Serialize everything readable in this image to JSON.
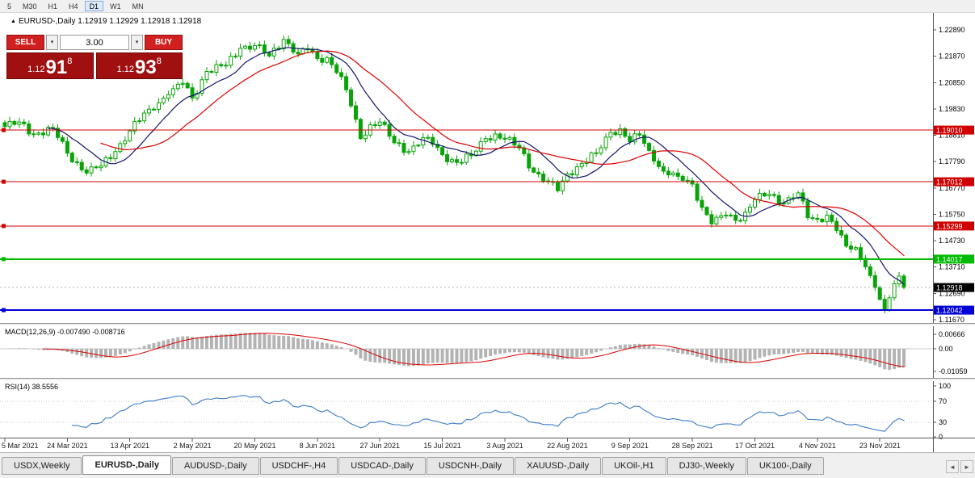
{
  "toolbar": {
    "timeframes": [
      {
        "label": "5",
        "active": false
      },
      {
        "label": "M30",
        "active": false
      },
      {
        "label": "H1",
        "active": false
      },
      {
        "label": "H4",
        "active": false
      },
      {
        "label": "D1",
        "active": true
      },
      {
        "label": "W1",
        "active": false
      },
      {
        "label": "MN",
        "active": false
      }
    ]
  },
  "icons": {
    "symbol_marker": "▲",
    "dropdown": "▾",
    "scroll_left": "◄",
    "scroll_right": "►"
  },
  "quote": {
    "text": "EURUSD-,Daily 1.12919 1.12929 1.12918 1.12918"
  },
  "trade_panel": {
    "sell_label": "SELL",
    "buy_label": "BUY",
    "volume": "3.00",
    "bid": {
      "prefix": "1.12",
      "big": "91",
      "sup": "8"
    },
    "ask": {
      "prefix": "1.12",
      "big": "93",
      "sup": "8"
    }
  },
  "indicators": {
    "macd_label": "MACD(12,26,9) -0.007490 -0.008716",
    "rsi_label": "RSI(14) 38.5556"
  },
  "price_axis": {
    "ticks": [
      "1.22890",
      "1.21870",
      "1.20850",
      "1.19830",
      "1.18810",
      "1.17790",
      "1.16770",
      "1.15750",
      "1.14730",
      "1.13710",
      "1.12690",
      "1.11670"
    ]
  },
  "macd_axis": {
    "ticks": [
      {
        "value": 0.00666,
        "label": "0.00666"
      },
      {
        "value": 0,
        "label": "0.00"
      },
      {
        "value": -0.01059,
        "label": "-0.01059"
      }
    ]
  },
  "rsi_axis": {
    "ticks": [
      {
        "value": 100,
        "label": "100"
      },
      {
        "value": 70,
        "label": "70"
      },
      {
        "value": 30,
        "label": "30"
      },
      {
        "value": 0,
        "label": "0"
      }
    ],
    "levels": [
      70,
      30
    ]
  },
  "levels": [
    {
      "price": 1.1901,
      "label": "1.19010",
      "color": "#d10000",
      "width": 1,
      "kind": "hline"
    },
    {
      "price": 1.17012,
      "label": "1.17012",
      "color": "#d10000",
      "width": 1,
      "kind": "hline"
    },
    {
      "price": 1.15299,
      "label": "1.15299",
      "color": "#d10000",
      "width": 1,
      "kind": "hline"
    },
    {
      "price": 1.14017,
      "label": "1.14017",
      "color": "#00bb00",
      "width": 2,
      "kind": "hline"
    },
    {
      "price": 1.12918,
      "label": "1.12918",
      "color": "#000000",
      "width": 1,
      "kind": "bid"
    },
    {
      "price": 1.12042,
      "label": "1.12042",
      "color": "#0000d6",
      "width": 2,
      "kind": "hline"
    }
  ],
  "date_axis": {
    "bar_step": 13,
    "labels": [
      "5 Mar 2021",
      "24 Mar 2021",
      "13 Apr 2021",
      "2 May 2021",
      "20 May 2021",
      "8 Jun 2021",
      "27 Jun 2021",
      "15 Jul 2021",
      "3 Aug 2021",
      "22 Aug 2021",
      "9 Sep 2021",
      "28 Sep 2021",
      "17 Oct 2021",
      "4 Nov 2021",
      "23 Nov 2021"
    ]
  },
  "chart_data": {
    "type": "candlestick",
    "symbol": "EURUSD-",
    "timeframe": "Daily",
    "current": {
      "open": 1.12919,
      "high": 1.12929,
      "low": 1.12918,
      "close": 1.12918
    },
    "bar_count": 188,
    "visible_price_range": [
      1.1154,
      1.233
    ],
    "moving_averages": [
      {
        "period": 10,
        "color": "#14146e"
      },
      {
        "period": 21,
        "color": "#dd0000"
      }
    ],
    "macd": {
      "fast": 12,
      "slow": 26,
      "signal": 9,
      "value": -0.00749,
      "signal_value": -0.008716
    },
    "rsi": {
      "period": 14,
      "value": 38.5556
    },
    "close_anchors": [
      [
        0,
        1.1915
      ],
      [
        3,
        1.1932
      ],
      [
        6,
        1.1885
      ],
      [
        10,
        1.1908
      ],
      [
        13,
        1.1812
      ],
      [
        17,
        1.1735
      ],
      [
        20,
        1.1762
      ],
      [
        23,
        1.1818
      ],
      [
        26,
        1.1898
      ],
      [
        30,
        1.1982
      ],
      [
        34,
        1.2038
      ],
      [
        37,
        1.2082
      ],
      [
        39,
        1.2025
      ],
      [
        42,
        1.2128
      ],
      [
        46,
        1.2152
      ],
      [
        49,
        1.2218
      ],
      [
        52,
        1.2228
      ],
      [
        55,
        1.2188
      ],
      [
        58,
        1.2252
      ],
      [
        61,
        1.2196
      ],
      [
        63,
        1.2212
      ],
      [
        65,
        1.2178
      ],
      [
        67,
        1.2182
      ],
      [
        70,
        1.2108
      ],
      [
        72,
        1.1995
      ],
      [
        74,
        1.1868
      ],
      [
        76,
        1.1922
      ],
      [
        78,
        1.1932
      ],
      [
        81,
        1.1852
      ],
      [
        84,
        1.1818
      ],
      [
        87,
        1.1872
      ],
      [
        89,
        1.1846
      ],
      [
        91,
        1.1806
      ],
      [
        94,
        1.1776
      ],
      [
        97,
        1.1802
      ],
      [
        100,
        1.1868
      ],
      [
        102,
        1.1886
      ],
      [
        104,
        1.1866
      ],
      [
        107,
        1.1832
      ],
      [
        110,
        1.1738
      ],
      [
        113,
        1.1702
      ],
      [
        115,
        1.1666
      ],
      [
        117,
        1.1732
      ],
      [
        120,
        1.1772
      ],
      [
        123,
        1.1812
      ],
      [
        126,
        1.1892
      ],
      [
        128,
        1.1906
      ],
      [
        130,
        1.1856
      ],
      [
        132,
        1.1882
      ],
      [
        134,
        1.1822
      ],
      [
        137,
        1.1742
      ],
      [
        140,
        1.1722
      ],
      [
        143,
        1.1692
      ],
      [
        145,
        1.1602
      ],
      [
        147,
        1.1538
      ],
      [
        150,
        1.1572
      ],
      [
        153,
        1.155
      ],
      [
        156,
        1.1632
      ],
      [
        159,
        1.1652
      ],
      [
        162,
        1.1618
      ],
      [
        165,
        1.1658
      ],
      [
        167,
        1.1562
      ],
      [
        169,
        1.1556
      ],
      [
        171,
        1.1572
      ],
      [
        173,
        1.1512
      ],
      [
        175,
        1.1452
      ],
      [
        177,
        1.1446
      ],
      [
        179,
        1.1372
      ],
      [
        181,
        1.1292
      ],
      [
        182,
        1.1246
      ],
      [
        183,
        1.1206
      ],
      [
        184,
        1.1252
      ],
      [
        185,
        1.1306
      ],
      [
        186,
        1.1336
      ],
      [
        187,
        1.12918
      ]
    ]
  },
  "tabbar": {
    "tabs": [
      {
        "label": "USDX,Weekly",
        "active": false
      },
      {
        "label": "EURUSD-,Daily",
        "active": true
      },
      {
        "label": "AUDUSD-,Daily",
        "active": false
      },
      {
        "label": "USDCHF-,H4",
        "active": false
      },
      {
        "label": "USDCAD-,Daily",
        "active": false
      },
      {
        "label": "USDCNH-,Daily",
        "active": false
      },
      {
        "label": "XAUUSD-,Daily",
        "active": false
      },
      {
        "label": "UKOil-,H1",
        "active": false
      },
      {
        "label": "DJ30-,Weekly",
        "active": false
      },
      {
        "label": "UK100-,Daily",
        "active": false
      }
    ]
  }
}
